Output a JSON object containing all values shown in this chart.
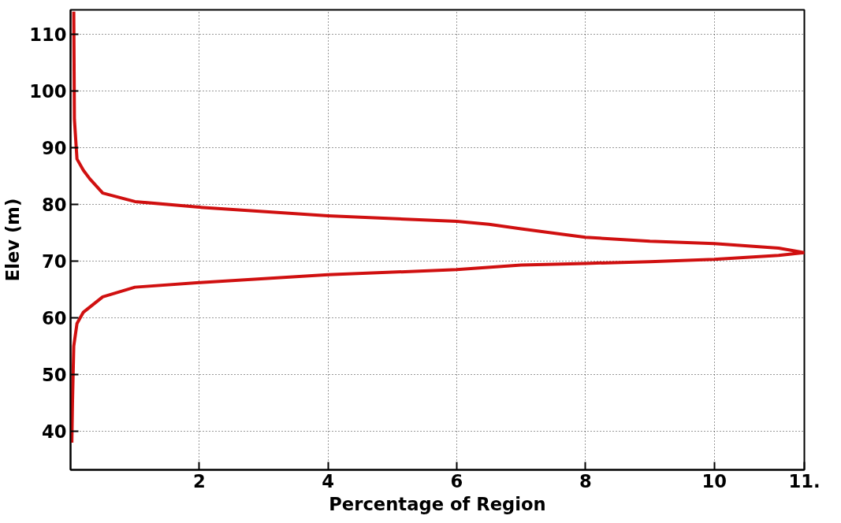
{
  "chart_data": {
    "type": "line",
    "xlabel": "Percentage of Region",
    "ylabel": "Elev (m)",
    "xlim": [
      0,
      11.4
    ],
    "ylim": [
      33.2,
      114.3
    ],
    "xticks": [
      2,
      4,
      6,
      8,
      10,
      {
        "value": 11.4,
        "label": "11."
      }
    ],
    "yticks": [
      40,
      50,
      60,
      70,
      80,
      90,
      100,
      110
    ],
    "grid": true,
    "marker": "none",
    "line_style": "solid",
    "series": [
      {
        "color": "#d01010",
        "x": [
          0.05,
          0.06,
          0.1,
          0.2,
          0.3,
          0.5,
          1,
          2,
          4,
          6,
          6.5,
          7,
          7.6,
          8,
          9,
          10,
          11,
          11.4,
          11,
          10,
          9,
          8,
          7,
          6,
          4,
          2,
          1,
          0.5,
          0.2,
          0.1,
          0.05,
          0.03,
          0.02
        ],
        "values": [
          114,
          95,
          88,
          86,
          84.5,
          82,
          80.5,
          79.5,
          78,
          77,
          76.5,
          75.7,
          74.8,
          74.2,
          73.5,
          73.1,
          72.3,
          71.5,
          71,
          70.3,
          69.9,
          69.6,
          69.3,
          68.5,
          67.6,
          66.2,
          65.4,
          63.7,
          61,
          59,
          55,
          45,
          38
        ]
      }
    ]
  }
}
